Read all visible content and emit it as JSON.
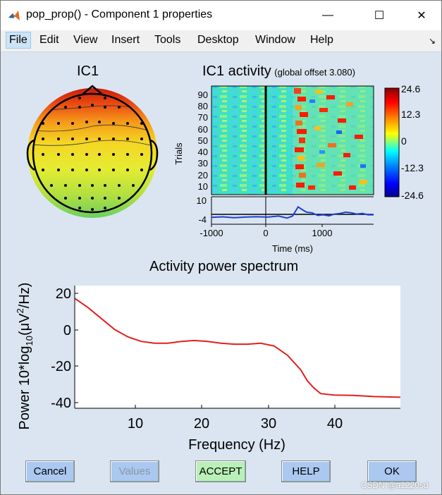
{
  "window": {
    "title": "pop_prop() - Component 1 properties",
    "minimize_glyph": "—",
    "maximize_glyph": "☐",
    "close_glyph": "✕"
  },
  "menu": [
    {
      "label": "File",
      "selected": true
    },
    {
      "label": "Edit"
    },
    {
      "label": "View"
    },
    {
      "label": "Insert"
    },
    {
      "label": "Tools"
    },
    {
      "label": "Desktop"
    },
    {
      "label": "Window"
    },
    {
      "label": "Help"
    }
  ],
  "menu_arrow": "↘",
  "topo": {
    "title": "IC1"
  },
  "erp_image": {
    "title": "IC1 activity",
    "subtitle": "(global offset 3.080)",
    "ylabel": "Trials",
    "trial_ticks": [
      "90",
      "80",
      "70",
      "60",
      "50",
      "40",
      "30",
      "20",
      "10"
    ],
    "erp_ticks": [
      "10",
      "-4"
    ],
    "time_ticks": [
      "-1000",
      "0",
      "1000"
    ],
    "xlabel": "Time (ms)",
    "colorbar_ticks": [
      "24.6",
      "12.3",
      "0",
      "-12.3",
      "-24.6"
    ]
  },
  "spectrum": {
    "title": "Activity power spectrum",
    "ylabel_main": "Power 10*log",
    "ylabel_sub": "10",
    "ylabel_unit": "(μV",
    "ylabel_sup": "2",
    "ylabel_end": "/Hz)",
    "xlabel": "Frequency (Hz)",
    "y_ticks": [
      "20",
      "0",
      "-20",
      "-40"
    ],
    "x_ticks": [
      "10",
      "20",
      "30",
      "40"
    ]
  },
  "buttons": {
    "cancel": "Cancel",
    "values": "Values",
    "accept": "ACCEPT",
    "help": "HELP",
    "ok": "OK"
  },
  "colors": {
    "window_bg": "#dbe5f1",
    "button_blue": "#aac8f0",
    "button_green": "#b8f0b8",
    "spectrum_line": "#e02020",
    "erp_line": "#1f3fd0"
  },
  "chart_data": [
    {
      "type": "line",
      "title": "Activity power spectrum",
      "xlabel": "Frequency (Hz)",
      "ylabel": "Power 10*log10(μV2/Hz)",
      "xlim": [
        1,
        50
      ],
      "ylim": [
        -42,
        25
      ],
      "series": [
        {
          "x": [
            1,
            3,
            5,
            7,
            9,
            11,
            13,
            15,
            17,
            19,
            21,
            23,
            25,
            27,
            29,
            31,
            33,
            35,
            36,
            37,
            38,
            40,
            43,
            46,
            50
          ],
          "values": [
            18,
            13,
            7,
            1,
            -3,
            -5.5,
            -6.5,
            -6.5,
            -5.5,
            -5,
            -5.5,
            -6.5,
            -7,
            -7,
            -6.5,
            -8,
            -13,
            -21,
            -27,
            -31,
            -34,
            -34.8,
            -35,
            -35.6,
            -36
          ]
        }
      ]
    },
    {
      "type": "line",
      "title": "IC1 activity",
      "xlabel": "Time (ms)",
      "xlim": [
        -1000,
        1900
      ],
      "ylim": [
        -4,
        10
      ],
      "series": [
        {
          "x": [
            -1000,
            -800,
            -600,
            -400,
            -200,
            0,
            200,
            350,
            450,
            550,
            620,
            700,
            800,
            900,
            1000,
            1100,
            1200,
            1300,
            1400,
            1500,
            1600,
            1700,
            1800,
            1900
          ],
          "values": [
            -2,
            -1.6,
            -2.2,
            -1.8,
            -1.5,
            -1.8,
            -1,
            -2.5,
            -1,
            6,
            4,
            2,
            1.5,
            -0.5,
            0,
            -0.8,
            0.5,
            1,
            2,
            1.5,
            0.5,
            1,
            0,
            0
          ]
        }
      ]
    }
  ]
}
